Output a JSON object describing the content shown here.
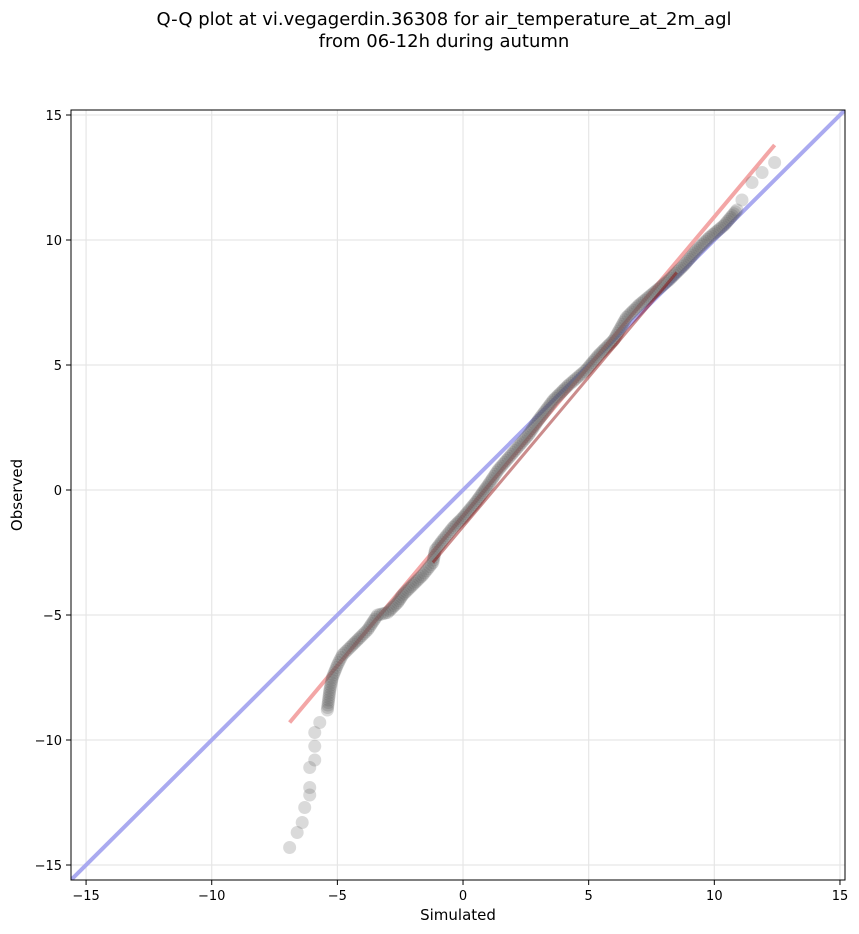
{
  "chart_data": {
    "type": "scatter",
    "title": [
      "Q-Q plot at vi.vegagerdin.36308 for air_temperature_at_2m_agl",
      "from 06-12h during autumn"
    ],
    "xlabel": "Simulated",
    "ylabel": "Observed",
    "xlim": [
      -15.6,
      15.2
    ],
    "ylim": [
      -15.6,
      15.2
    ],
    "xticks": [
      -15,
      -10,
      -5,
      0,
      5,
      10,
      15
    ],
    "yticks": [
      -15,
      -10,
      -5,
      0,
      5,
      10,
      15
    ],
    "xtick_labels": [
      "−15",
      "−10",
      "−5",
      "0",
      "5",
      "10",
      "15"
    ],
    "ytick_labels": [
      "−15",
      "−10",
      "−5",
      "0",
      "5",
      "10",
      "15"
    ],
    "grid": true,
    "series": [
      {
        "role": "quantiles",
        "color": "#555555",
        "points": [
          [
            -6.9,
            -14.3
          ],
          [
            -6.6,
            -13.7
          ],
          [
            -6.4,
            -13.3
          ],
          [
            -6.3,
            -12.7
          ],
          [
            -6.1,
            -12.2
          ],
          [
            -6.1,
            -11.9
          ],
          [
            -6.1,
            -11.1
          ],
          [
            -5.9,
            -10.8
          ],
          [
            -5.9,
            -9.7
          ],
          [
            -5.7,
            -9.3
          ],
          [
            -5.4,
            -8.8
          ],
          [
            -5.3,
            -8.0
          ],
          [
            -5.2,
            -7.5
          ],
          [
            -5.0,
            -7.0
          ],
          [
            -4.8,
            -6.6
          ],
          [
            -4.5,
            -6.3
          ],
          [
            -4.1,
            -5.9
          ],
          [
            -3.8,
            -5.6
          ],
          [
            -3.4,
            -5.0
          ],
          [
            -3.0,
            -4.9
          ],
          [
            -2.6,
            -4.5
          ],
          [
            -2.4,
            -4.2
          ],
          [
            -2.0,
            -3.8
          ],
          [
            -1.6,
            -3.4
          ],
          [
            -1.2,
            -2.9
          ],
          [
            -1.1,
            -2.4
          ],
          [
            -0.8,
            -2.0
          ],
          [
            -0.4,
            -1.5
          ],
          [
            0.0,
            -1.1
          ],
          [
            0.5,
            -0.5
          ],
          [
            1.0,
            0.2
          ],
          [
            1.4,
            0.8
          ],
          [
            2.0,
            1.5
          ],
          [
            2.6,
            2.2
          ],
          [
            3.0,
            2.8
          ],
          [
            3.6,
            3.6
          ],
          [
            4.2,
            4.2
          ],
          [
            4.9,
            4.8
          ],
          [
            5.4,
            5.4
          ],
          [
            6.0,
            6.0
          ],
          [
            6.5,
            6.9
          ],
          [
            7.0,
            7.4
          ],
          [
            7.6,
            7.9
          ],
          [
            8.2,
            8.4
          ],
          [
            8.8,
            9.0
          ],
          [
            9.3,
            9.6
          ],
          [
            9.8,
            10.1
          ],
          [
            10.4,
            10.6
          ],
          [
            10.9,
            11.2
          ],
          [
            11.1,
            11.6
          ],
          [
            11.5,
            12.3
          ],
          [
            11.9,
            12.7
          ],
          [
            12.4,
            13.1
          ]
        ]
      },
      {
        "role": "identity-line",
        "color": "#aaaaf0",
        "x": [
          -15.6,
          15.2
        ],
        "y": [
          -15.6,
          15.2
        ]
      },
      {
        "role": "fit-line",
        "color": "#f3a6a6",
        "x": [
          -6.9,
          12.4
        ],
        "y": [
          -9.3,
          13.8
        ]
      }
    ]
  }
}
